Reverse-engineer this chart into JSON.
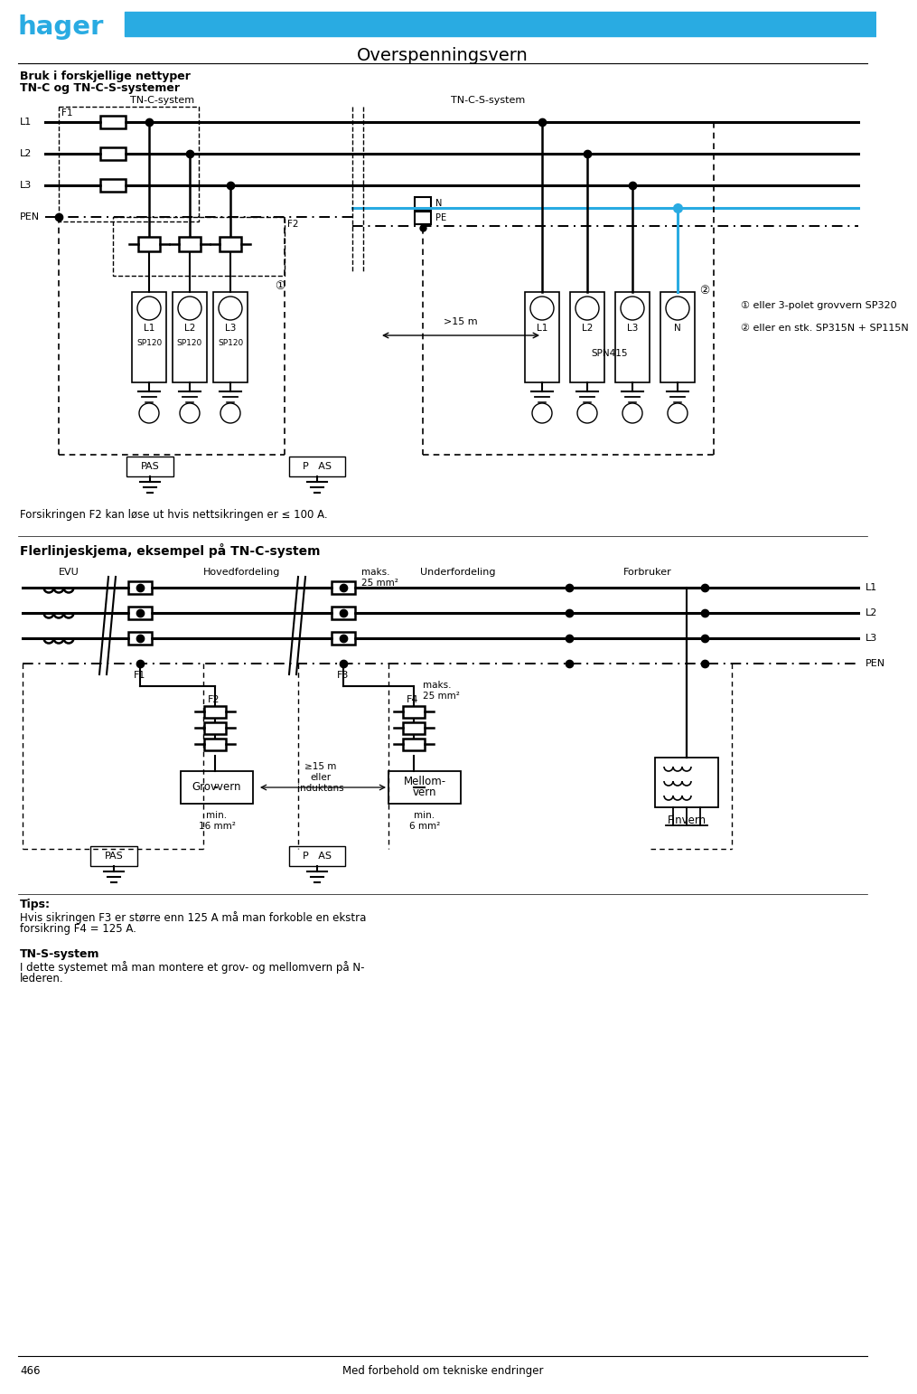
{
  "title": "Overspenningsvern",
  "header_blue": "#29ABE2",
  "black": "#000000",
  "white": "#FFFFFF",
  "page_number": "466",
  "footer_text": "Med forbehold om tekniske endringer",
  "sec1_title": "Bruk i forskjellige nettyper",
  "sec1_sub": "TN-C og TN-C-S-systemer",
  "tnc_label": "TN-C-system",
  "tncs_label": "TN-C-S-system",
  "sec2_title": "Flerlinjeskjema, eksempel på TN-C-system",
  "evu_label": "EVU",
  "hoved_label": "Hovedfordeling",
  "under_label": "Underfordeling",
  "forbruker_label": "Forbruker",
  "note1": "① eller 3-polet grovvern SP320",
  "note2": "② eller en stk. SP315N + SP115N",
  "tips_title": "Tips:",
  "tips_line1": "Hvis sikringen F3 er større enn 125 A må man forkoble en ekstra",
  "tips_line2": "forsikring F4 = 125 A.",
  "tns_title": "TN-S-system",
  "tns_line1": "I dette systemet må man montere et grov- og mellomvern på N-",
  "tns_line2": "lederen.",
  "forsikring_note": "Forsikringen F2 kan løse ut hvis nettsikringen er ≤ 100 A."
}
